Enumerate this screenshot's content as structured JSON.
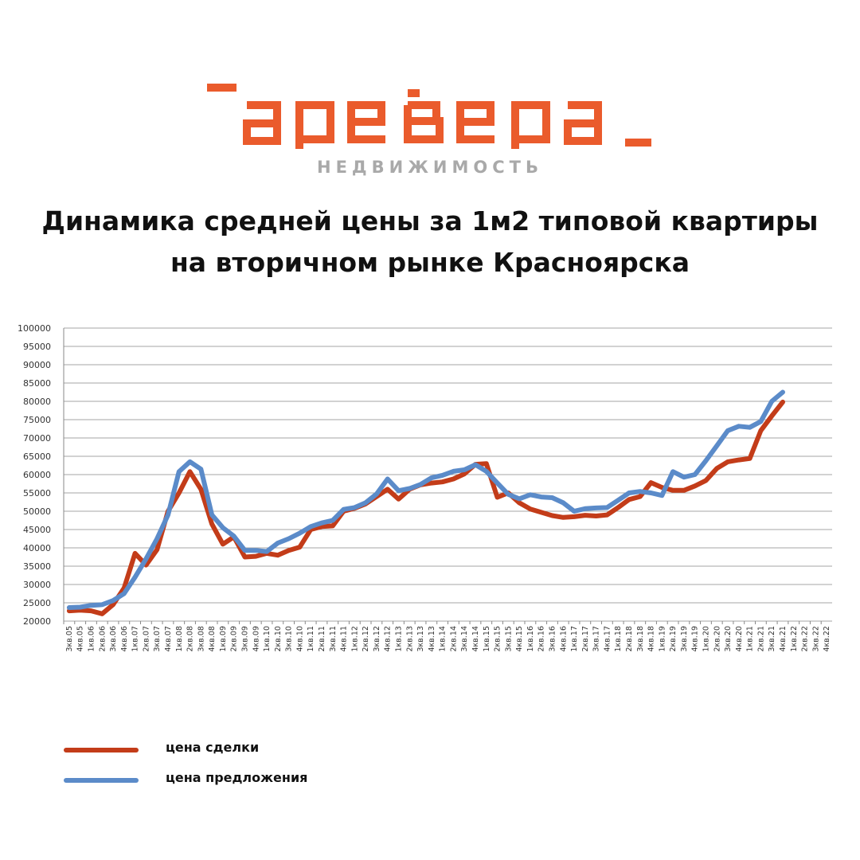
{
  "brand": {
    "name": "apeBepa",
    "subtitle": "НЕДВИЖИМОСТЬ",
    "color": "#ea5b2c"
  },
  "title": {
    "line1": "Динамика средней цены за 1м2 типовой квартиры",
    "line2": "на вторичном рынке Красноярска"
  },
  "colors": {
    "deal": "#c33c19",
    "offer": "#5b8bc9",
    "grid": "#a6a6a6"
  },
  "legend": {
    "deal_label": "цена сделки",
    "offer_label": "цена предложения"
  },
  "chart_data": {
    "type": "line",
    "title": "",
    "xlabel": "",
    "ylabel": "",
    "ylim": [
      20000,
      100000
    ],
    "yticks": [
      20000,
      25000,
      30000,
      35000,
      40000,
      45000,
      50000,
      55000,
      60000,
      65000,
      70000,
      75000,
      80000,
      85000,
      90000,
      95000,
      100000
    ],
    "grid": true,
    "legend_position": "bottom-left",
    "categories": [
      "3кв.05",
      "4кв.05",
      "1кв.06",
      "2кв.06",
      "3кв.06",
      "4кв.06",
      "1кв.07",
      "2кв.07",
      "3кв.07",
      "4кв.07",
      "1кв.08",
      "2кв.08",
      "3кв.08",
      "4кв.08",
      "1кв.09",
      "2кв.09",
      "3кв.09",
      "4кв.09",
      "1кв.10",
      "2кв.10",
      "3кв.10",
      "4кв.10",
      "1кв.11",
      "2кв.11",
      "3кв.11",
      "4кв.11",
      "1кв.12",
      "2кв.12",
      "3кв.12",
      "4кв.12",
      "1кв.13",
      "2кв.13",
      "3кв.13",
      "4кв.13",
      "1кв.14",
      "2кв.14",
      "3кв.14",
      "4кв.14",
      "1кв.15",
      "2кв.15",
      "3кв.15",
      "4кв.15",
      "1кв.16",
      "2кв.16",
      "3кв.16",
      "4кв.16",
      "1кв.17",
      "2кв.17",
      "3кв.17",
      "4кв.17",
      "1кв.18",
      "2кв.18",
      "3кв.18",
      "4кв.18",
      "1кв.19",
      "2кв.19",
      "3кв.19",
      "4кв.19",
      "1кв.20",
      "2кв.20",
      "3кв.20",
      "4кв.20",
      "1кв.21",
      "2кв.21",
      "3кв.21",
      "4кв.21",
      "1кв.22",
      "2кв.22",
      "3кв.22",
      "4кв.22"
    ],
    "series": [
      {
        "name": "цена сделки",
        "values": [
          22800,
          23000,
          22800,
          22000,
          24500,
          29000,
          38500,
          35300,
          39500,
          50000,
          55000,
          60800,
          56000,
          46500,
          41000,
          43000,
          37500,
          37700,
          38500,
          38000,
          39300,
          40200,
          45000,
          45800,
          46000,
          50000,
          50800,
          52000,
          54000,
          56000,
          53300,
          56000,
          57200,
          57700,
          58000,
          58800,
          60200,
          62800,
          63000,
          53800,
          55000,
          52300,
          50600,
          49700,
          48800,
          48300,
          48500,
          48900,
          48700,
          49000,
          51000,
          53200,
          54000,
          57800,
          56500,
          55700,
          55700,
          56900,
          58400,
          61700,
          63500,
          64000,
          64400,
          72000,
          76000,
          79800,
          null,
          null,
          null,
          null
        ]
      },
      {
        "name": "цена предложения",
        "values": [
          23700,
          23800,
          24300,
          24500,
          25600,
          27500,
          32000,
          37000,
          42500,
          49000,
          60800,
          63500,
          61500,
          49000,
          45500,
          43200,
          39300,
          39300,
          39000,
          41300,
          42500,
          44000,
          45800,
          46800,
          47500,
          50500,
          51000,
          52300,
          54700,
          58800,
          55600,
          56200,
          57300,
          59100,
          59800,
          60900,
          61300,
          62700,
          60900,
          57700,
          54600,
          53400,
          54500,
          53900,
          53700,
          52300,
          50000,
          50700,
          50900,
          51000,
          53000,
          55000,
          55400,
          55000,
          54300,
          60800,
          59300,
          60000,
          63800,
          67900,
          72000,
          73200,
          72900,
          74500,
          80000,
          82500,
          null,
          null,
          null,
          null
        ]
      }
    ]
  }
}
